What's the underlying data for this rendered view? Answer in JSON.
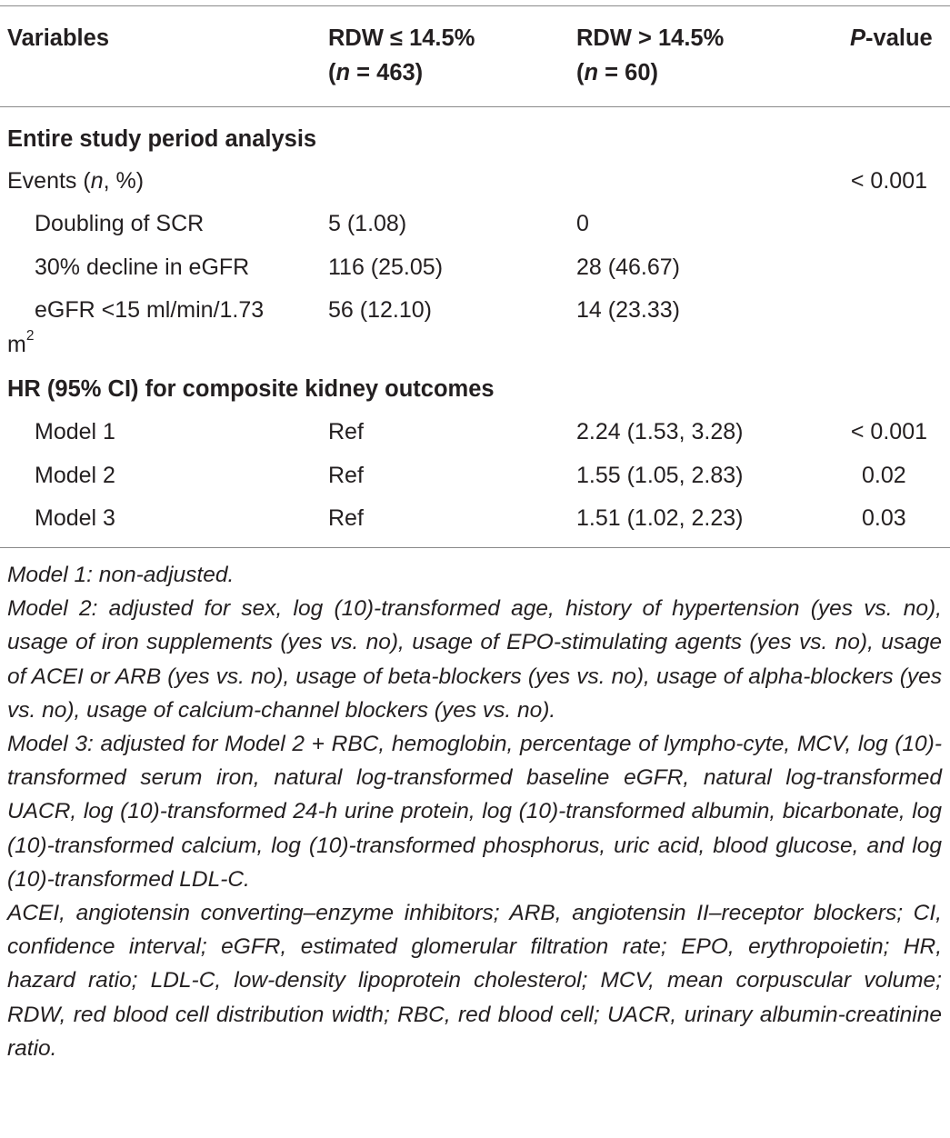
{
  "header": {
    "col1": "Variables",
    "col2_line1": "RDW ≤ 14.5%",
    "col2_n_var": "n",
    "col2_n_val": " = 463)",
    "col3_line1": "RDW > 14.5%",
    "col3_n_var": "n",
    "col3_n_val": " = 60)",
    "col4_p": "P",
    "col4_rest": "-value"
  },
  "sections": {
    "entire": "Entire study period analysis",
    "hr": "HR (95% CI) for composite kidney outcomes"
  },
  "events": {
    "label_pre": "Events (",
    "label_n": "n",
    "label_post": ", %)",
    "p": "< 0.001"
  },
  "rows": [
    {
      "label": "Doubling of SCR",
      "low": "5 (1.08)",
      "high": "0",
      "p": ""
    },
    {
      "label": "30% decline in eGFR",
      "low": "116 (25.05)",
      "high": "28 (46.67)",
      "p": ""
    },
    {
      "label": "eGFR <15 ml/min/1.73",
      "label_wrap": "m",
      "label_sup": "2",
      "low": "56 (12.10)",
      "high": "14 (23.33)",
      "p": ""
    }
  ],
  "models": [
    {
      "label": "Model 1",
      "low": "Ref",
      "high": "2.24 (1.53, 3.28)",
      "p": "< 0.001"
    },
    {
      "label": "Model 2",
      "low": "Ref",
      "high": "1.55 (1.05, 2.83)",
      "p": "0.02"
    },
    {
      "label": "Model 3",
      "low": "Ref",
      "high": "1.51 (1.02, 2.23)",
      "p": "0.03"
    }
  ],
  "footnotes": [
    "Model 1: non-adjusted.",
    "Model 2: adjusted for sex, log (10)-transformed age, history of hypertension (yes vs. no), usage of iron supplements (yes vs. no), usage of EPO-stimulating agents (yes vs. no), usage of ACEI or ARB (yes vs. no), usage of beta-blockers (yes vs. no), usage of alpha-blockers (yes vs. no), usage of calcium-channel blockers (yes vs. no).",
    "Model 3: adjusted for Model 2 + RBC, hemoglobin, percentage of lympho-cyte, MCV, log (10)-transformed serum iron, natural log-transformed baseline eGFR, natural log-transformed UACR, log (10)-transformed 24-h urine protein, log (10)-transformed albumin, bicarbonate, log (10)-transformed calcium, log (10)-transformed phosphorus, uric acid, blood glucose, and log (10)-transformed LDL-C.",
    "ACEI, angiotensin converting–enzyme inhibitors; ARB, angiotensin II–receptor blockers; CI, confidence interval; eGFR, estimated glomerular filtration rate; EPO, erythropoietin; HR, hazard ratio; LDL-C, low-density lipoprotein cholesterol; MCV, mean corpuscular volume; RDW, red blood cell distribution width; RBC, red blood cell; UACR, urinary albumin-creatinine ratio."
  ]
}
